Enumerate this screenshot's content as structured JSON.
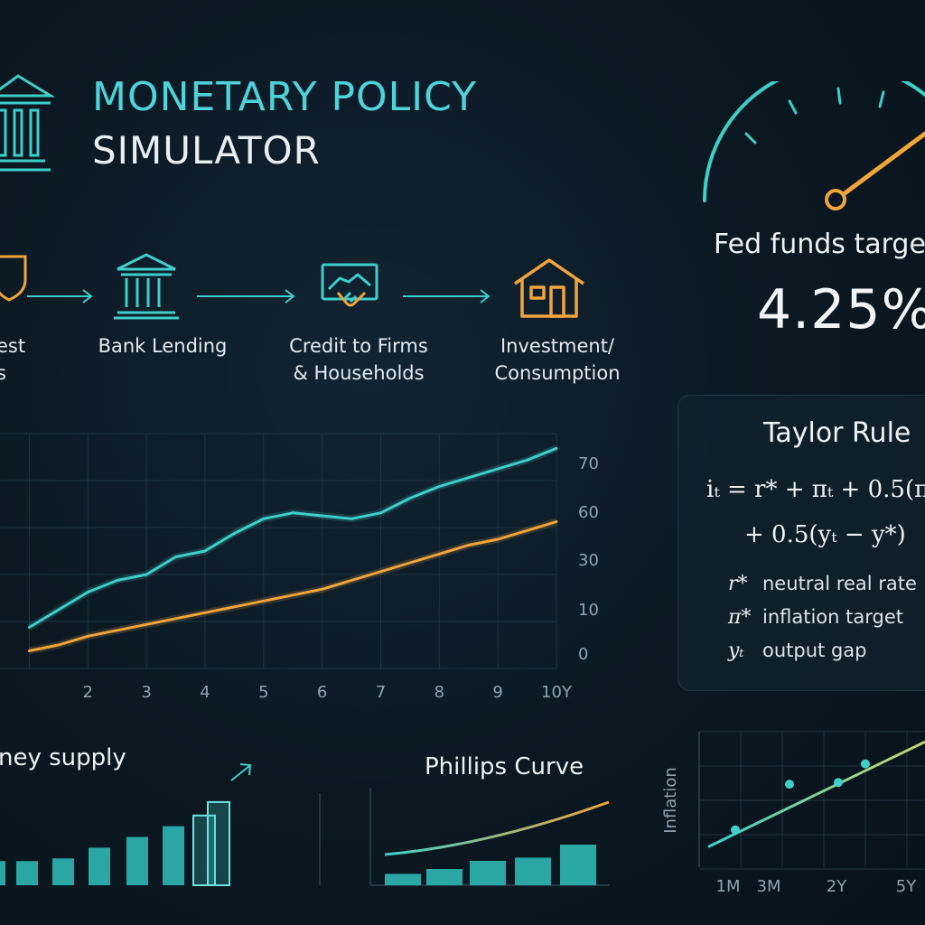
{
  "header": {
    "title_line1": "MONETARY POLICY",
    "title_line2": "SIMULATOR"
  },
  "flow": {
    "steps": [
      {
        "icon": "shield-icon",
        "line1": "est",
        "line2": "s"
      },
      {
        "icon": "bank-icon",
        "line1": "Bank Lending",
        "line2": ""
      },
      {
        "icon": "handshake-icon",
        "line1": "Credit to Firms",
        "line2": "& Households"
      },
      {
        "icon": "house-icon",
        "line1": "Investment/",
        "line2": "Consumption"
      }
    ]
  },
  "gauge": {
    "label": "Fed funds targe",
    "value": "4.25%"
  },
  "taylor": {
    "title": "Taylor Rule",
    "formula_line1": "iₜ = r* + πₜ + 0.5(πₜ",
    "formula_line2": "+ 0.5(yₜ − y*)",
    "legend": [
      {
        "symbol": "r*",
        "text": "neutral real rate"
      },
      {
        "symbol": "π*",
        "text": "inflation target"
      },
      {
        "symbol": "yₜ",
        "text": "output gap"
      }
    ]
  },
  "colors": {
    "teal": "#3ecfc9",
    "orange": "#f0a43c",
    "title_teal": "#4fd2d8"
  },
  "chart_data": [
    {
      "type": "line",
      "x_tick_labels": [
        "2",
        "3",
        "4",
        "5",
        "6",
        "7",
        "8",
        "9",
        "10Y"
      ],
      "y_tick_labels": [
        "0",
        "10",
        "30",
        "60",
        "70"
      ],
      "grid": true,
      "series": [
        {
          "color": "#3ecfc9",
          "x": [
            1,
            1.5,
            2,
            2.5,
            3,
            3.5,
            4,
            4.5,
            5,
            5.5,
            6,
            6.5,
            7,
            7.5,
            8,
            8.5,
            9,
            9.5,
            10
          ],
          "y": [
            14,
            20,
            26,
            30,
            32,
            38,
            40,
            46,
            51,
            53,
            52,
            51,
            53,
            58,
            62,
            65,
            68,
            71,
            75
          ]
        },
        {
          "color": "#f0a43c",
          "x": [
            1,
            1.5,
            2,
            2.5,
            3,
            3.5,
            4,
            4.5,
            5,
            5.5,
            6,
            6.5,
            7,
            7.5,
            8,
            8.5,
            9,
            9.5,
            10
          ],
          "y": [
            6,
            8,
            11,
            13,
            15,
            17,
            19,
            21,
            23,
            25,
            27,
            30,
            33,
            36,
            39,
            42,
            44,
            47,
            50
          ]
        }
      ]
    },
    {
      "type": "bar",
      "title": "ney supply",
      "values": [
        18,
        18,
        20,
        28,
        36,
        44,
        52,
        62,
        68
      ]
    },
    {
      "type": "bar",
      "title": "Phillips Curve",
      "values": [
        14,
        20,
        30,
        34,
        50
      ]
    },
    {
      "type": "scatter",
      "ylabel": "Inflation",
      "x_tick_labels": [
        "1M",
        "3M",
        "2Y",
        "5Y"
      ],
      "points": [
        [
          1.5,
          2.2
        ],
        [
          2.5,
          4.9
        ],
        [
          3.4,
          5.0
        ],
        [
          3.9,
          6.1
        ]
      ],
      "trend": [
        [
          1.0,
          1.2
        ],
        [
          5.0,
          7.4
        ]
      ]
    }
  ]
}
